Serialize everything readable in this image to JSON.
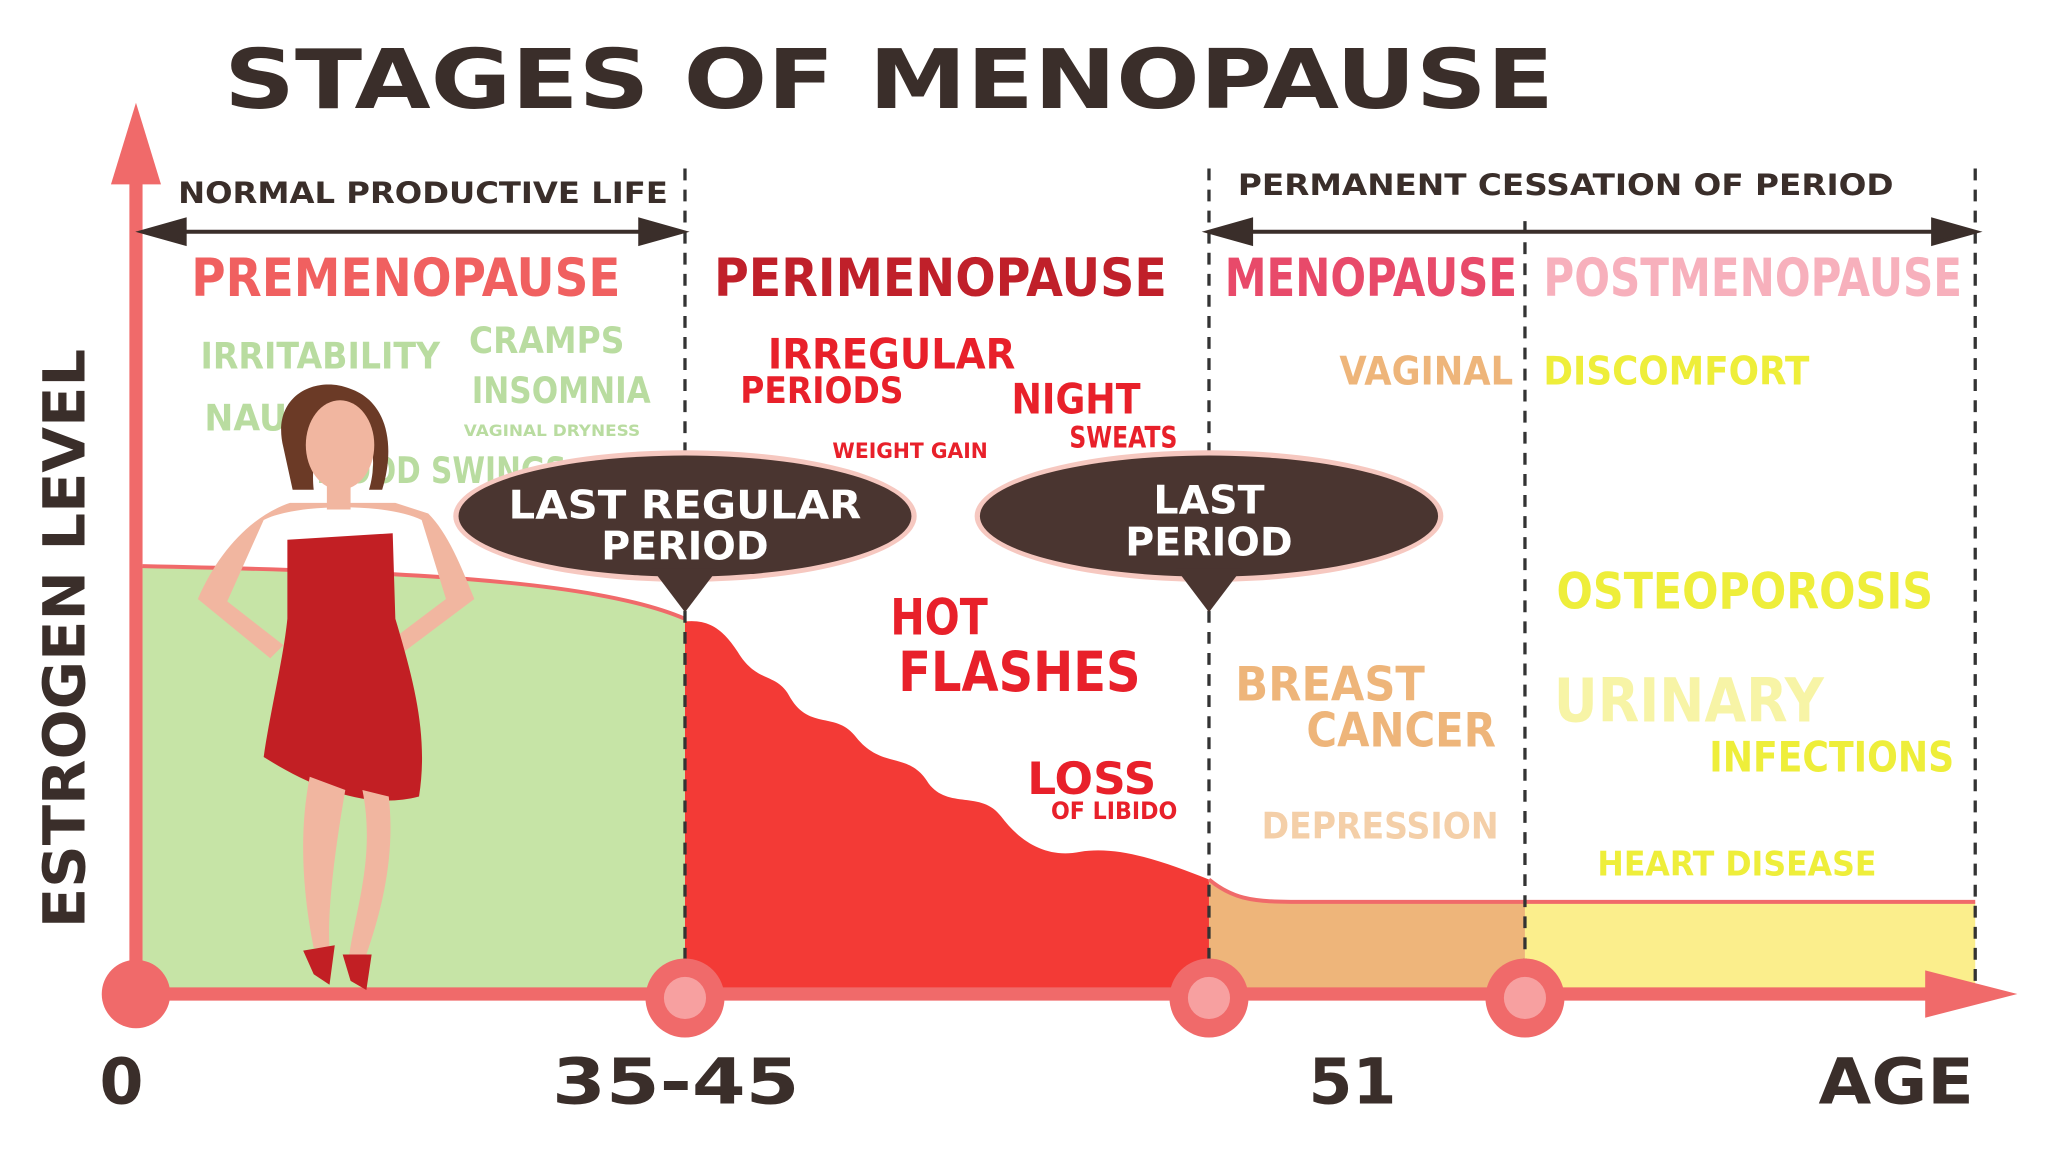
{
  "title": "STAGES OF MENOPAUSE",
  "axes": {
    "y_label": "ESTROGEN LEVEL",
    "x_labels": [
      "0",
      "35-45",
      "51",
      "AGE"
    ]
  },
  "ranges": [
    "NORMAL PRODUCTIVE LIFE",
    "PERMANENT CESSATION OF PERIOD"
  ],
  "stages": [
    {
      "name": "PREMENOPAUSE",
      "symptoms": [
        "IRRITABILITY",
        "CRAMPS",
        "INSOMNIA",
        "VAGINAL DRYNESS",
        "NAUSEA",
        "MOOD SWINGS"
      ]
    },
    {
      "name": "PERIMENOPAUSE",
      "symptoms": [
        "IRREGULAR",
        "PERIODS",
        "NIGHT",
        "SWEATS",
        "WEIGHT GAIN",
        "HOT",
        "FLASHES",
        "LOSS",
        "OF LIBIDO"
      ]
    },
    {
      "name": "MENOPAUSE",
      "symptoms": [
        "VAGINAL",
        "BREAST",
        "CANCER",
        "DEPRESSION"
      ]
    },
    {
      "name": "POSTMENOPAUSE",
      "symptoms": [
        "DISCOMFORT",
        "OSTEOPOROSIS",
        "URINARY",
        "INFECTIONS",
        "HEART DISEASE"
      ]
    }
  ],
  "markers": [
    {
      "lines": [
        "LAST REGULAR",
        "PERIOD"
      ]
    },
    {
      "lines": [
        "LAST",
        "PERIOD"
      ]
    }
  ]
}
